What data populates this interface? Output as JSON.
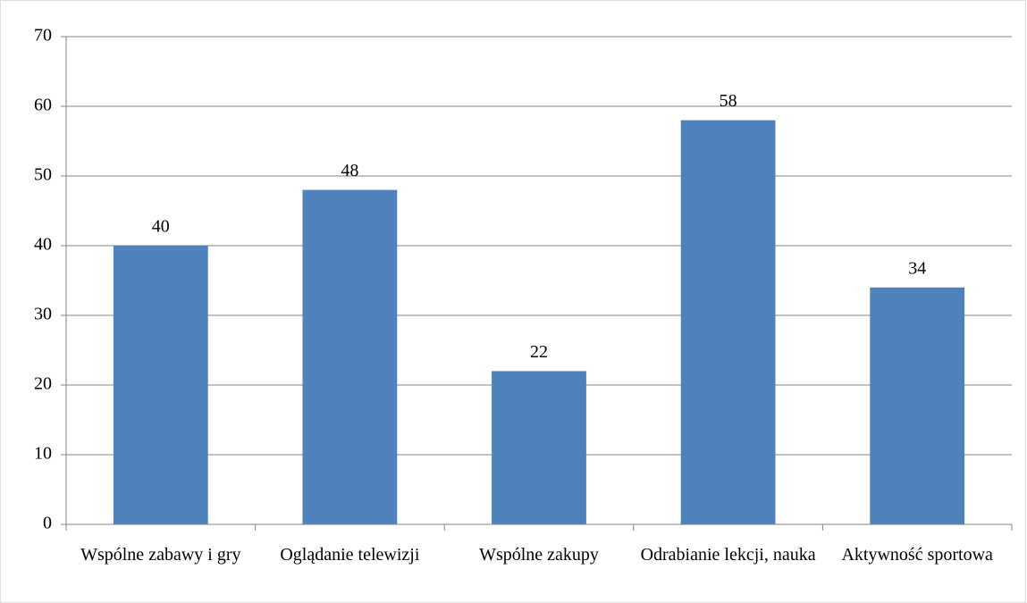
{
  "chart_data": {
    "type": "bar",
    "categories": [
      "Wspólne zabawy i gry",
      "Oglądanie telewizji",
      "Wspólne zakupy",
      "Odrabianie lekcji, nauka",
      "Aktywność sportowa"
    ],
    "values": [
      40,
      48,
      22,
      58,
      34
    ],
    "color": "#4f81bd",
    "ylim": [
      0,
      70
    ],
    "yticks": [
      0,
      10,
      20,
      30,
      40,
      50,
      60,
      70
    ],
    "grid": true
  }
}
